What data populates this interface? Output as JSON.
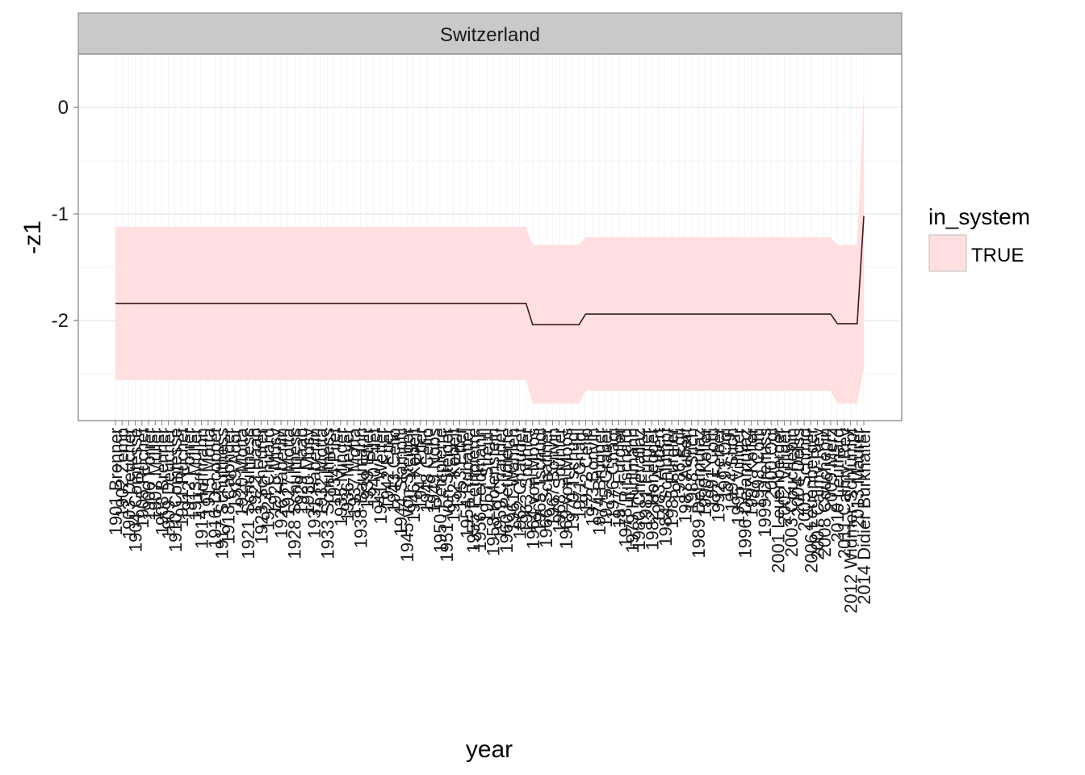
{
  "chart_data": {
    "type": "line",
    "facet": "Switzerland",
    "xlabel": "year",
    "ylabel": "-z1",
    "yticks": [
      0,
      -1,
      -2
    ],
    "ylim": [
      -2.94,
      0.5
    ],
    "legend": {
      "title": "in_system",
      "entries": [
        "TRUE"
      ],
      "placement": "right"
    },
    "colors": {
      "ribbon": "#ffdfe0",
      "line": "#3b1b1b",
      "panel_border": "#7f7f7f",
      "strip": "#c9c9c9",
      "grid": "#ececec"
    },
    "x": [
      "1901 Brenner",
      "1902 Zemp",
      "1903 Deucher",
      "1904 Comtesse",
      "1905 Ruchet",
      "1906 Forrer",
      "1907 Müller",
      "1908 Brenner",
      "1909 Deucher",
      "1910 Comtesse",
      "1911 Ruchet",
      "1912 Forrer",
      "1913 Müller",
      "1914 Hoffmann",
      "1915 Motta",
      "1916 Decoppet",
      "1917 Schulthess",
      "1918 Calonder",
      "1919 Ador",
      "1920 Motta",
      "1921 Schulthess",
      "1922 Haab",
      "1923 Scheurer",
      "1924 Chuard",
      "1925 Musy",
      "1926 Häberlin",
      "1927 Motta",
      "1928 Schulthess",
      "1929 Haab",
      "1930 Musy",
      "1931 Häberlin",
      "1932 Motta",
      "1933 Schulthess",
      "1934 Pilet",
      "1935 Minger",
      "1936 Meyer",
      "1937 Motta",
      "1938 Baumann",
      "1939 Etter",
      "1940 Pilet",
      "1941 Wetter",
      "1942 Etter",
      "1943 Celio",
      "1944 Stampfli",
      "1945 von Steiger",
      "1946 Kobelt",
      "1947 Etter",
      "1948 Celio",
      "1949 Nobs",
      "1950 Petitpierre",
      "1951 von Steiger",
      "1952 Kobelt",
      "1953 Etter",
      "1954 Rubattel",
      "1955 Petitpierre",
      "1956 Feldmann",
      "1957 Streuli",
      "1958 Holenstein",
      "1959 Chaudet",
      "1960 Petitpierre",
      "1961 Wahlen",
      "1962 Chaudet",
      "1963 Spühler",
      "1964 von Moos",
      "1965 Tschudi",
      "1966 Schaffner",
      "1967 Bonvin",
      "1968 Spühler",
      "1969 von Moos",
      "1970 Tschudi",
      "1971 Gnägi",
      "1972 Celio",
      "1973 Bonvin",
      "1974 Brugger",
      "1975 Graber",
      "1976 Gnägi",
      "1977 Furgler",
      "1978 Ritschard",
      "1979 Hürlimann",
      "1980 Chevallaz",
      "1981 Furgler",
      "1982 Honegger",
      "1983 Aubert",
      "1984 Schlumpf",
      "1985 Furgler",
      "1986 Egli",
      "1987 Aubert",
      "1988 Stich",
      "1989 Delamuraz",
      "1990 Koller",
      "1991 Cotti",
      "1992 Felber",
      "1993 Ogi",
      "1994 Stich",
      "1995 Villiger",
      "1996 Delamuraz",
      "1997 Koller",
      "1998 Cotti",
      "1999 Dreifuss",
      "2000 Ogi",
      "2001 Leuenberger",
      "2002 Villiger",
      "2003 Couchepin",
      "2004 Deiss",
      "2005 Schmid",
      "2006 Leuenberger",
      "2007 Calmy-Rey",
      "2008 Couchepin",
      "2009 Merz",
      "2010 Leuthard",
      "2011 Calmy-Rey",
      "2012 Widmer-Schlumpf",
      "2013 Maurer",
      "2014 Didier Burkhalter"
    ],
    "series": [
      {
        "values": [
          -1.84,
          -1.84,
          -1.84,
          -1.84,
          -1.84,
          -1.84,
          -1.84,
          -1.84,
          -1.84,
          -1.84,
          -1.84,
          -1.84,
          -1.84,
          -1.84,
          -1.84,
          -1.84,
          -1.84,
          -1.84,
          -1.84,
          -1.84,
          -1.84,
          -1.84,
          -1.84,
          -1.84,
          -1.84,
          -1.84,
          -1.84,
          -1.84,
          -1.84,
          -1.84,
          -1.84,
          -1.84,
          -1.84,
          -1.84,
          -1.84,
          -1.84,
          -1.84,
          -1.84,
          -1.84,
          -1.84,
          -1.84,
          -1.84,
          -1.84,
          -1.84,
          -1.84,
          -1.84,
          -1.84,
          -1.84,
          -1.84,
          -1.84,
          -1.84,
          -1.84,
          -1.84,
          -1.84,
          -1.84,
          -1.84,
          -1.84,
          -1.84,
          -1.84,
          -1.84,
          -1.84,
          -1.84,
          -1.84,
          -2.04,
          -2.04,
          -2.04,
          -2.04,
          -2.04,
          -2.04,
          -2.04,
          -2.04,
          -1.94,
          -1.94,
          -1.94,
          -1.94,
          -1.94,
          -1.94,
          -1.94,
          -1.94,
          -1.94,
          -1.94,
          -1.94,
          -1.94,
          -1.94,
          -1.94,
          -1.94,
          -1.94,
          -1.94,
          -1.94,
          -1.94,
          -1.94,
          -1.94,
          -1.94,
          -1.94,
          -1.94,
          -1.94,
          -1.94,
          -1.94,
          -1.94,
          -1.94,
          -1.94,
          -1.94,
          -1.94,
          -1.94,
          -1.94,
          -1.94,
          -1.94,
          -1.94,
          -1.94,
          -2.03,
          -2.03,
          -2.03,
          -2.03,
          -1.02
        ],
        "lower": [
          -2.56,
          -2.56,
          -2.56,
          -2.56,
          -2.56,
          -2.56,
          -2.56,
          -2.56,
          -2.56,
          -2.56,
          -2.56,
          -2.56,
          -2.56,
          -2.56,
          -2.56,
          -2.56,
          -2.56,
          -2.56,
          -2.56,
          -2.56,
          -2.56,
          -2.56,
          -2.56,
          -2.56,
          -2.56,
          -2.56,
          -2.56,
          -2.56,
          -2.56,
          -2.56,
          -2.56,
          -2.56,
          -2.56,
          -2.56,
          -2.56,
          -2.56,
          -2.56,
          -2.56,
          -2.56,
          -2.56,
          -2.56,
          -2.56,
          -2.56,
          -2.56,
          -2.56,
          -2.56,
          -2.56,
          -2.56,
          -2.56,
          -2.56,
          -2.56,
          -2.56,
          -2.56,
          -2.56,
          -2.56,
          -2.56,
          -2.56,
          -2.56,
          -2.56,
          -2.56,
          -2.56,
          -2.56,
          -2.56,
          -2.78,
          -2.78,
          -2.78,
          -2.78,
          -2.78,
          -2.78,
          -2.78,
          -2.78,
          -2.66,
          -2.66,
          -2.66,
          -2.66,
          -2.66,
          -2.66,
          -2.66,
          -2.66,
          -2.66,
          -2.66,
          -2.66,
          -2.66,
          -2.66,
          -2.66,
          -2.66,
          -2.66,
          -2.66,
          -2.66,
          -2.66,
          -2.66,
          -2.66,
          -2.66,
          -2.66,
          -2.66,
          -2.66,
          -2.66,
          -2.66,
          -2.66,
          -2.66,
          -2.66,
          -2.66,
          -2.66,
          -2.66,
          -2.66,
          -2.66,
          -2.66,
          -2.66,
          -2.66,
          -2.78,
          -2.78,
          -2.78,
          -2.78,
          -2.45
        ],
        "upper": [
          -1.12,
          -1.12,
          -1.12,
          -1.12,
          -1.12,
          -1.12,
          -1.12,
          -1.12,
          -1.12,
          -1.12,
          -1.12,
          -1.12,
          -1.12,
          -1.12,
          -1.12,
          -1.12,
          -1.12,
          -1.12,
          -1.12,
          -1.12,
          -1.12,
          -1.12,
          -1.12,
          -1.12,
          -1.12,
          -1.12,
          -1.12,
          -1.12,
          -1.12,
          -1.12,
          -1.12,
          -1.12,
          -1.12,
          -1.12,
          -1.12,
          -1.12,
          -1.12,
          -1.12,
          -1.12,
          -1.12,
          -1.12,
          -1.12,
          -1.12,
          -1.12,
          -1.12,
          -1.12,
          -1.12,
          -1.12,
          -1.12,
          -1.12,
          -1.12,
          -1.12,
          -1.12,
          -1.12,
          -1.12,
          -1.12,
          -1.12,
          -1.12,
          -1.12,
          -1.12,
          -1.12,
          -1.12,
          -1.12,
          -1.29,
          -1.29,
          -1.29,
          -1.29,
          -1.29,
          -1.29,
          -1.29,
          -1.29,
          -1.22,
          -1.22,
          -1.22,
          -1.22,
          -1.22,
          -1.22,
          -1.22,
          -1.22,
          -1.22,
          -1.22,
          -1.22,
          -1.22,
          -1.22,
          -1.22,
          -1.22,
          -1.22,
          -1.22,
          -1.22,
          -1.22,
          -1.22,
          -1.22,
          -1.22,
          -1.22,
          -1.22,
          -1.22,
          -1.22,
          -1.22,
          -1.22,
          -1.22,
          -1.22,
          -1.22,
          -1.22,
          -1.22,
          -1.22,
          -1.22,
          -1.22,
          -1.22,
          -1.22,
          -1.29,
          -1.29,
          -1.29,
          -1.29,
          0.14
        ]
      }
    ]
  }
}
